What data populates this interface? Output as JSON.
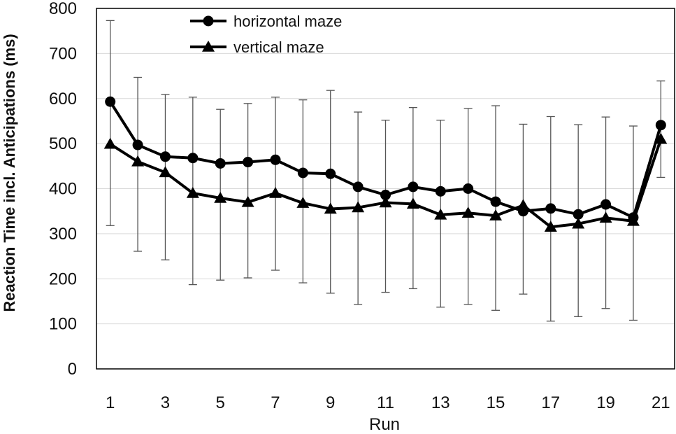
{
  "chart_data": {
    "type": "line",
    "xlabel": "Run",
    "ylabel": "Reaction Time incl. Anticipations (ms)",
    "xlim": [
      0.5,
      21.5
    ],
    "ylim": [
      0,
      800
    ],
    "yticks": [
      0,
      100,
      200,
      300,
      400,
      500,
      600,
      700,
      800
    ],
    "xticks": [
      1,
      3,
      5,
      7,
      9,
      11,
      13,
      15,
      17,
      19,
      21
    ],
    "grid": "horizontal",
    "legend": "top-center",
    "x": [
      1,
      2,
      3,
      4,
      5,
      6,
      7,
      8,
      9,
      10,
      11,
      12,
      13,
      14,
      15,
      16,
      17,
      18,
      19,
      20,
      21
    ],
    "error_bars": {
      "upper": [
        773,
        647,
        609,
        603,
        576,
        589,
        603,
        597,
        618,
        570,
        552,
        580,
        552,
        578,
        584,
        543,
        560,
        542,
        559,
        539,
        639
      ],
      "lower": [
        318,
        261,
        242,
        187,
        197,
        202,
        219,
        191,
        168,
        143,
        170,
        178,
        137,
        143,
        130,
        166,
        106,
        116,
        134,
        108,
        425
      ]
    },
    "series": [
      {
        "name": "horizontal maze",
        "marker": "circle",
        "color": "#000000",
        "values": [
          593,
          497,
          471,
          468,
          456,
          459,
          464,
          435,
          433,
          404,
          386,
          404,
          394,
          400,
          371,
          350,
          356,
          343,
          365,
          336,
          541
        ]
      },
      {
        "name": "vertical maze",
        "marker": "triangle",
        "color": "#000000",
        "values": [
          499,
          460,
          436,
          390,
          379,
          370,
          390,
          368,
          355,
          358,
          369,
          366,
          342,
          346,
          340,
          363,
          315,
          322,
          335,
          328,
          510
        ]
      }
    ]
  }
}
